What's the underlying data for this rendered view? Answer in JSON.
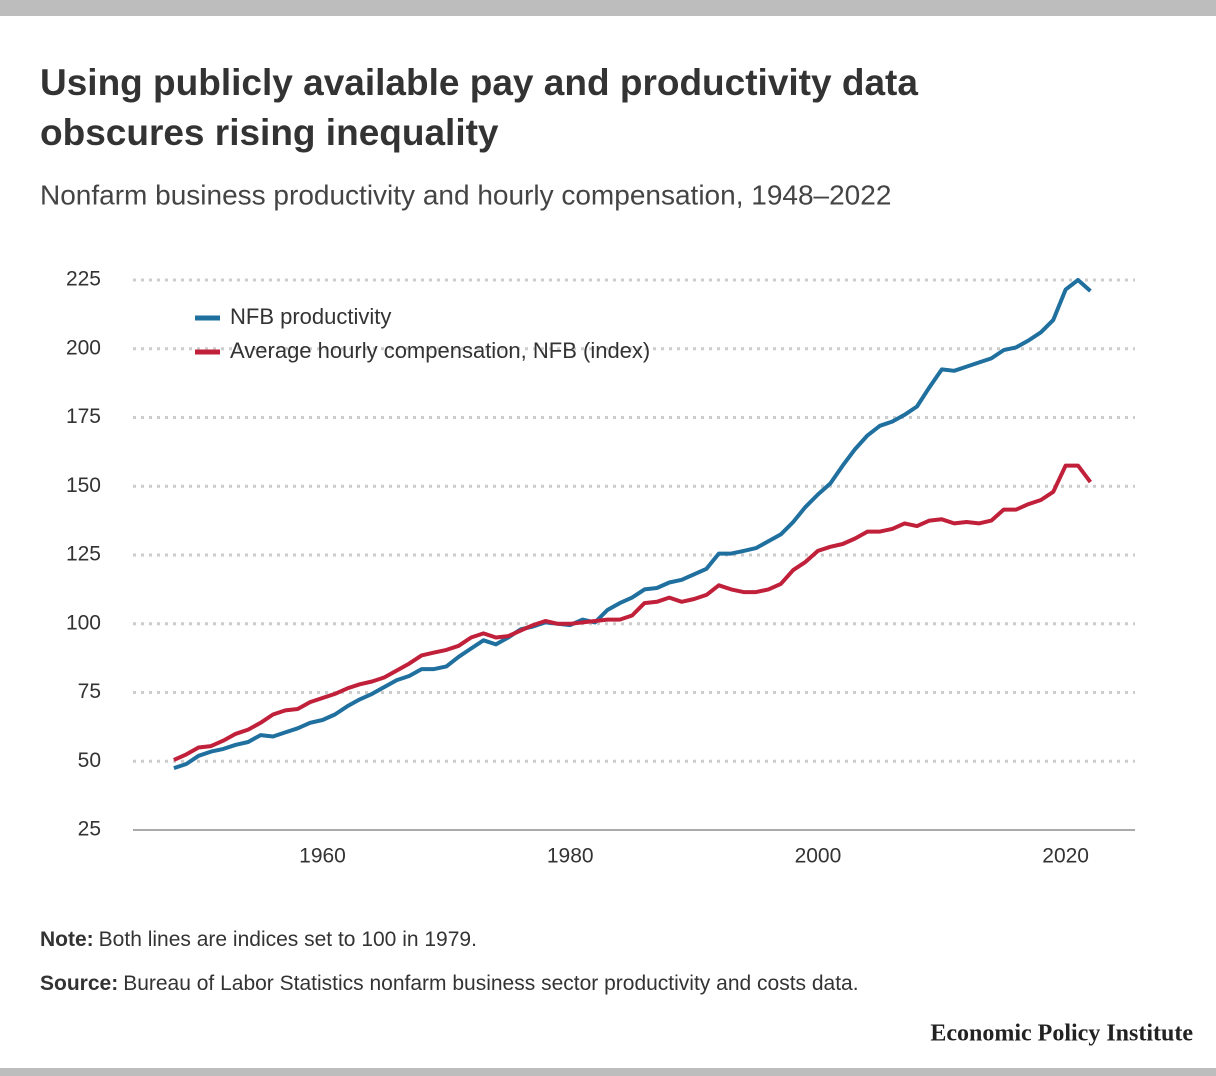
{
  "chart_data": {
    "type": "line",
    "title": "Using publicly available pay and productivity data obscures rising inequality",
    "subtitle": "Nonfarm business productivity and hourly compensation, 1948–2022",
    "x": [
      1948,
      1949,
      1950,
      1951,
      1952,
      1953,
      1954,
      1955,
      1956,
      1957,
      1958,
      1959,
      1960,
      1961,
      1962,
      1963,
      1964,
      1965,
      1966,
      1967,
      1968,
      1969,
      1970,
      1971,
      1972,
      1973,
      1974,
      1975,
      1976,
      1977,
      1978,
      1979,
      1980,
      1981,
      1982,
      1983,
      1984,
      1985,
      1986,
      1987,
      1988,
      1989,
      1990,
      1991,
      1992,
      1993,
      1994,
      1995,
      1996,
      1997,
      1998,
      1999,
      2000,
      2001,
      2002,
      2003,
      2004,
      2005,
      2006,
      2007,
      2008,
      2009,
      2010,
      2011,
      2012,
      2013,
      2014,
      2015,
      2016,
      2017,
      2018,
      2019,
      2020,
      2021,
      2022
    ],
    "series": [
      {
        "name": "NFB productivity",
        "color": "#1f6f9f",
        "values": [
          47.5,
          49,
          52,
          53.5,
          54.5,
          56,
          57,
          59.5,
          59,
          60.5,
          62,
          64,
          65,
          67,
          70,
          72.5,
          74.5,
          77,
          79.5,
          81,
          83.5,
          83.5,
          84.5,
          88,
          91,
          94,
          92.5,
          95,
          98,
          99,
          100.5,
          100,
          99.5,
          101.5,
          100.5,
          105,
          107.5,
          109.5,
          112.5,
          113,
          115,
          116,
          118,
          120,
          125.5,
          125.5,
          126.5,
          127.5,
          130,
          132.5,
          137,
          142.5,
          147,
          151,
          157.5,
          163.5,
          168.5,
          172,
          173.5,
          176,
          179,
          186,
          192.5,
          192,
          193.5,
          195,
          196.5,
          199.5,
          200.5,
          203,
          206,
          210.5,
          221.5,
          225,
          221
        ]
      },
      {
        "name": "Average hourly compensation, NFB (index)",
        "color": "#c0203a",
        "values": [
          50.5,
          52.5,
          55,
          55.5,
          57.5,
          60,
          61.5,
          64,
          67,
          68.5,
          69,
          71.5,
          73,
          74.5,
          76.5,
          78,
          79,
          80.5,
          83,
          85.5,
          88.5,
          89.5,
          90.5,
          92,
          95,
          96.5,
          95,
          95.5,
          97.5,
          99.5,
          101,
          100,
          100,
          100.5,
          101,
          101.5,
          101.5,
          103,
          107.5,
          108,
          109.5,
          108,
          109,
          110.5,
          114,
          112.5,
          111.5,
          111.5,
          112.5,
          114.5,
          119.5,
          122.5,
          126.5,
          128,
          129,
          131,
          133.5,
          133.5,
          134.5,
          136.5,
          135.5,
          137.5,
          138,
          136.5,
          137,
          136.5,
          137.5,
          141.5,
          141.5,
          143.5,
          145,
          148,
          157.5,
          157.5,
          151.5
        ]
      }
    ],
    "xlim": [
      1944.7,
      2025.6
    ],
    "xticks": [
      1960,
      1980,
      2000,
      2020
    ],
    "ylim": [
      25,
      225
    ],
    "yticks": [
      25,
      50,
      75,
      100,
      125,
      150,
      175,
      200,
      225
    ],
    "grid": true,
    "legend": "top-left"
  },
  "note": {
    "label": "Note:",
    "text": "Both lines are indices set to 100 in 1979."
  },
  "source": {
    "label": "Source:",
    "text": "Bureau of Labor Statistics nonfarm business sector productivity and costs data."
  },
  "footer": "Economic Policy Institute"
}
